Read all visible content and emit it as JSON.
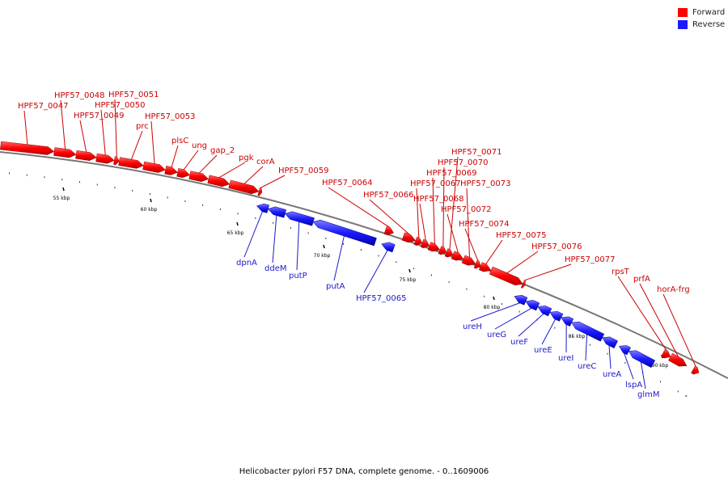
{
  "legend": {
    "forward": {
      "label": "Forward",
      "color": "#ff0000"
    },
    "reverse": {
      "label": "Reverse",
      "color": "#1a1aff"
    }
  },
  "colors": {
    "forward_label": "#cc0000",
    "reverse_label": "#1a1acc",
    "backbone": "#777777"
  },
  "caption": "Helicobacter pylori F57 DNA, complete genome. - 0..1609006",
  "scale_labels": [
    "55 kbp",
    "60 kbp",
    "65 kbp",
    "70 kbp",
    "75 kbp",
    "80 kbp",
    "85 kbp",
    "90 kbp"
  ],
  "forward_genes": [
    "HPF57_0047",
    "HPF57_0048",
    "HPF57_0049",
    "HPF57_0050",
    "HPF57_0051",
    "prc",
    "HPF57_0053",
    "plsC",
    "ung",
    "gap_2",
    "pgk",
    "corA",
    "HPF57_0059",
    "HPF57_0064",
    "HPF57_0066",
    "HPF57_0067",
    "HPF57_0068",
    "HPF57_0069",
    "HPF57_0070",
    "HPF57_0071",
    "HPF57_0072",
    "HPF57_0073",
    "HPF57_0074",
    "HPF57_0075",
    "HPF57_0076",
    "HPF57_0077",
    "rpsT",
    "prfA",
    "horA-frg"
  ],
  "reverse_genes": [
    "dpnA",
    "ddeM",
    "putP",
    "putA",
    "HPF57_0065",
    "ureH",
    "ureG",
    "ureF",
    "ureE",
    "ureI",
    "ureC",
    "ureA",
    "lspA",
    "glmM"
  ]
}
